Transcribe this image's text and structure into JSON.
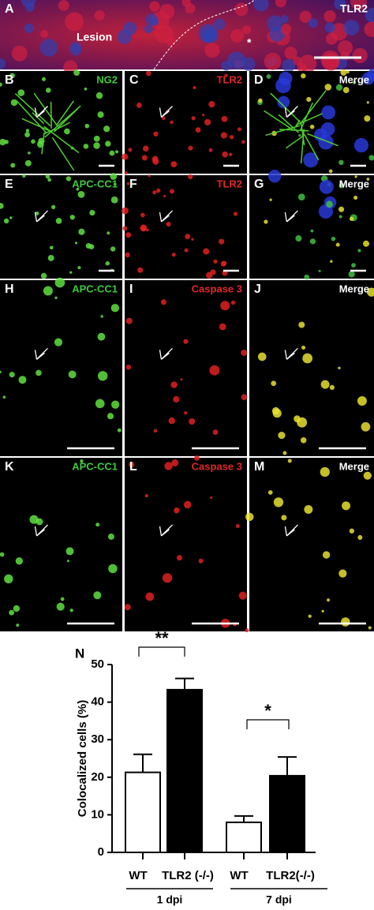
{
  "panels": [
    {
      "letter": "A",
      "label": "TLR2",
      "region": "Lesion",
      "marker": "*"
    },
    {
      "letter": "B",
      "label": "NG2"
    },
    {
      "letter": "C",
      "label": "TLR2"
    },
    {
      "letter": "D",
      "label": "Merge"
    },
    {
      "letter": "E",
      "label": "APC-CC1"
    },
    {
      "letter": "F",
      "label": "TLR2"
    },
    {
      "letter": "G",
      "label": "Merge"
    },
    {
      "letter": "H",
      "label": "APC-CC1"
    },
    {
      "letter": "I",
      "label": "Caspase 3"
    },
    {
      "letter": "J",
      "label": "Merge"
    },
    {
      "letter": "K",
      "label": "APC-CC1"
    },
    {
      "letter": "L",
      "label": "Caspase 3"
    },
    {
      "letter": "M",
      "label": "Merge"
    }
  ],
  "chart_data": {
    "type": "bar",
    "panel": "N",
    "y_label": "Colocalized cells (%)",
    "categories": [
      "WT",
      "TLR2 (-/-)",
      "WT",
      "TLR2(-/-)"
    ],
    "values": [
      21.3,
      43.3,
      8.0,
      20.4
    ],
    "errors": [
      4.8,
      3.0,
      1.7,
      5.0
    ],
    "colors": [
      "#ffffff",
      "#000000",
      "#ffffff",
      "#000000"
    ],
    "groups": [
      {
        "label": "1 dpi"
      },
      {
        "label": "7 dpi"
      }
    ],
    "annotations": [
      {
        "text": "**"
      },
      {
        "text": "*"
      }
    ],
    "ylim": [
      0,
      50
    ],
    "yticks": [
      0,
      10,
      20,
      30,
      40,
      50
    ]
  }
}
